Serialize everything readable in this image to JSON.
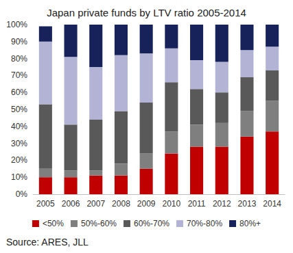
{
  "chart_data": {
    "type": "bar",
    "title": "Japan private funds by LTV ratio 2005-2014",
    "source": "Source: ARES, JLL",
    "stacked": true,
    "grid": false,
    "legend": "bottom",
    "categories": [
      "2005",
      "2006",
      "2007",
      "2008",
      "2009",
      "2010",
      "2011",
      "2012",
      "2013",
      "2014"
    ],
    "series": [
      {
        "name": "<50%",
        "color": "#c00000",
        "values": [
          10,
          10,
          11,
          11,
          15,
          24,
          28,
          28,
          34,
          37
        ]
      },
      {
        "name": "50%-60%",
        "color": "#7f7f7f",
        "values": [
          5,
          4,
          3,
          7,
          9,
          13,
          13,
          14,
          15,
          18
        ]
      },
      {
        "name": "60%-70%",
        "color": "#595959",
        "values": [
          38,
          27,
          30,
          31,
          30,
          29,
          21,
          18,
          20,
          18
        ]
      },
      {
        "name": "70%-80%",
        "color": "#b3b3d6",
        "values": [
          37,
          40,
          31,
          33,
          29,
          20,
          17,
          18,
          16,
          14
        ]
      },
      {
        "name": "80%+",
        "color": "#17215a",
        "values": [
          9,
          19,
          25,
          18,
          17,
          14,
          21,
          22,
          15,
          13
        ]
      }
    ],
    "ylim": [
      0,
      100
    ],
    "yticks": [
      {
        "value": 0,
        "label": "0%"
      },
      {
        "value": 10,
        "label": "10%"
      },
      {
        "value": 20,
        "label": "20%"
      },
      {
        "value": 30,
        "label": "30%"
      },
      {
        "value": 40,
        "label": "40%"
      },
      {
        "value": 50,
        "label": "50%"
      },
      {
        "value": 60,
        "label": "60%"
      },
      {
        "value": 70,
        "label": "70%"
      },
      {
        "value": 80,
        "label": "80%"
      },
      {
        "value": 90,
        "label": "90%"
      },
      {
        "value": 100,
        "label": "100%"
      }
    ]
  }
}
